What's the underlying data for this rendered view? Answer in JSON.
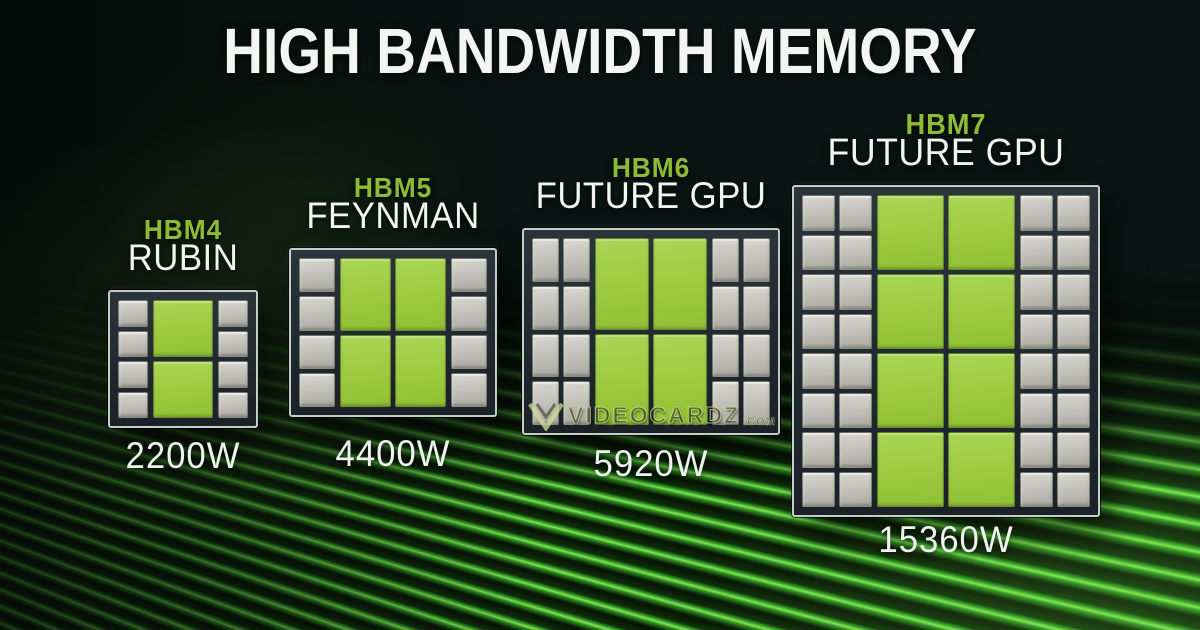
{
  "slide": {
    "title": "HIGH BANDWIDTH MEMORY"
  },
  "watermark": {
    "name": "VideoCardz",
    "suffix": ".com"
  },
  "packages": [
    {
      "generation": "HBM4",
      "codename": "RUBIN",
      "power": "2200W",
      "gpu_dies": {
        "columns": 1,
        "rows": 2,
        "total": 2
      },
      "hbm_stacks_per_side": {
        "columns": 1,
        "rows": 4,
        "total": 4
      },
      "hbm_stacks_total": 8
    },
    {
      "generation": "HBM5",
      "codename": "FEYNMAN",
      "power": "4400W",
      "gpu_dies": {
        "columns": 2,
        "rows": 2,
        "total": 4
      },
      "hbm_stacks_per_side": {
        "columns": 1,
        "rows": 4,
        "total": 4
      },
      "hbm_stacks_total": 8
    },
    {
      "generation": "HBM6",
      "codename": "FUTURE GPU",
      "power": "5920W",
      "gpu_dies": {
        "columns": 2,
        "rows": 2,
        "total": 4
      },
      "hbm_stacks_per_side": {
        "columns": 2,
        "rows": 4,
        "total": 8
      },
      "hbm_stacks_total": 16
    },
    {
      "generation": "HBM7",
      "codename": "FUTURE GPU",
      "power": "15360W",
      "gpu_dies": {
        "columns": 2,
        "rows": 4,
        "total": 8
      },
      "hbm_stacks_per_side": {
        "columns": 2,
        "rows": 8,
        "total": 16
      },
      "hbm_stacks_total": 32
    }
  ],
  "colors": {
    "hbm_generation_label_green": "#8dbb35",
    "gpu_die_green": "#9cca3e",
    "hbm_stack_gray": "#c2c1b8",
    "package_bezel_dark": "#232c33",
    "package_outline_light": "#c3cec6",
    "title_white": "#f3f5f2",
    "background_dark": "#0a1110",
    "floor_stripe_green": "#2f9e26"
  }
}
